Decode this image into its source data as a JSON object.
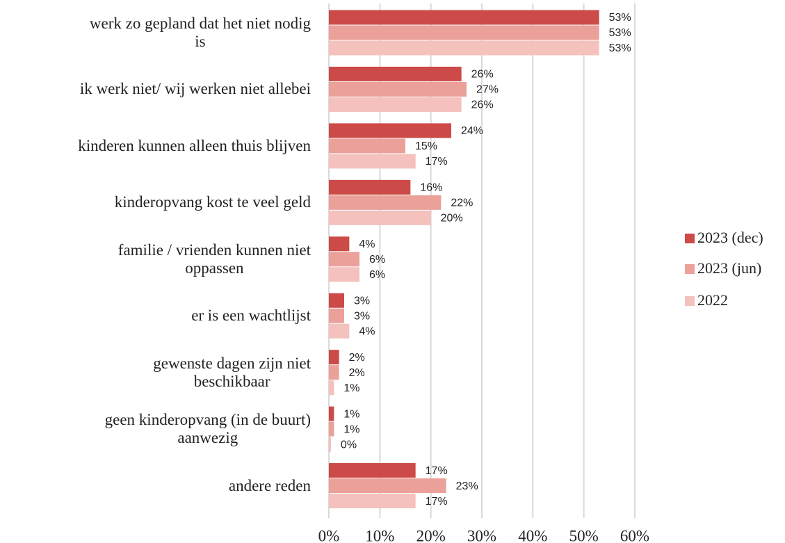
{
  "chart_data": {
    "type": "bar",
    "orientation": "horizontal",
    "categories": [
      [
        "werk zo gepland dat het niet nodig",
        "is"
      ],
      [
        "ik werk niet/ wij werken niet allebei"
      ],
      [
        "kinderen kunnen alleen thuis blijven"
      ],
      [
        "kinderopvang kost te veel geld"
      ],
      [
        "familie / vrienden kunnen niet",
        "oppassen"
      ],
      [
        "er is een wachtlijst"
      ],
      [
        "gewenste dagen zijn niet",
        "beschikbaar"
      ],
      [
        "geen kinderopvang (in de buurt)",
        "aanwezig"
      ],
      [
        "andere reden"
      ]
    ],
    "series": [
      {
        "name": "2023 (dec)",
        "color": "#cc4a47",
        "values": [
          53,
          26,
          24,
          16,
          4,
          3,
          2,
          1,
          17
        ],
        "value_labels": [
          "53%",
          "26%",
          "24%",
          "16%",
          "4%",
          "3%",
          "2%",
          "1%",
          "17%"
        ]
      },
      {
        "name": "2023 (jun)",
        "color": "#eba09a",
        "values": [
          53,
          27,
          15,
          22,
          6,
          3,
          2,
          1,
          23
        ],
        "value_labels": [
          "53%",
          "27%",
          "15%",
          "22%",
          "6%",
          "3%",
          "2%",
          "1%",
          "23%"
        ]
      },
      {
        "name": "2022",
        "color": "#f4c1bd",
        "values": [
          53,
          26,
          17,
          20,
          6,
          4,
          1,
          0.4,
          17
        ],
        "value_labels": [
          "53%",
          "26%",
          "17%",
          "20%",
          "6%",
          "4%",
          "1%",
          "0%",
          "17%"
        ]
      }
    ],
    "xlim": [
      0,
      60
    ],
    "xticks": [
      {
        "value": 0,
        "label": "0%"
      },
      {
        "value": 10,
        "label": "10%"
      },
      {
        "value": 20,
        "label": "20%"
      },
      {
        "value": 30,
        "label": "30%"
      },
      {
        "value": 40,
        "label": "40%"
      },
      {
        "value": 50,
        "label": "50%"
      },
      {
        "value": 60,
        "label": "60%"
      }
    ],
    "grid": true,
    "legend": "right"
  }
}
